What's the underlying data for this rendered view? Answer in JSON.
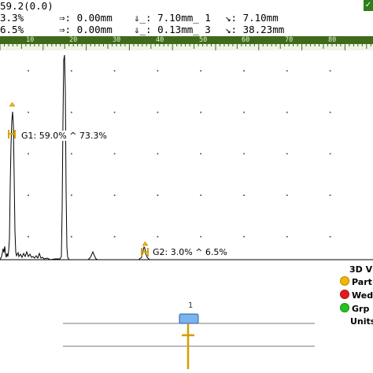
{
  "readouts": {
    "row1": {
      "gain": "59.2(0.0)"
    },
    "row2": {
      "amp": "3.3%",
      "dist": "⇒: 0.00mm",
      "depth": "⇓̲: 7.10mm̲ 1",
      "path": "↘: 7.10mm"
    },
    "row3": {
      "amp": "6.5%",
      "dist": "⇒: 0.00mm",
      "depth": "⇓̲: 0.13mm̲ 3",
      "path": "↘: 38.23mm"
    }
  },
  "ruler": {
    "labels": [
      "10",
      "20",
      "30",
      "40",
      "50",
      "60",
      "70",
      "80"
    ],
    "color": "#3f6a1c"
  },
  "ascan": {
    "gate1": {
      "label": "G1: 59.0% ^ 73.3%",
      "color": "#d8a200"
    },
    "gate2": {
      "label": "G2: 3.0% ^ 6.5%",
      "color": "#d8a200"
    },
    "signal_color": "#000000"
  },
  "legend": {
    "title": "3D V",
    "items": [
      {
        "label": "Part",
        "color": "#f2b800"
      },
      {
        "label": "Wed",
        "color": "#e31a1a"
      },
      {
        "label": "Grp",
        "color": "#23c21c"
      }
    ],
    "units": "Units"
  },
  "bscan": {
    "index_label": "1"
  }
}
